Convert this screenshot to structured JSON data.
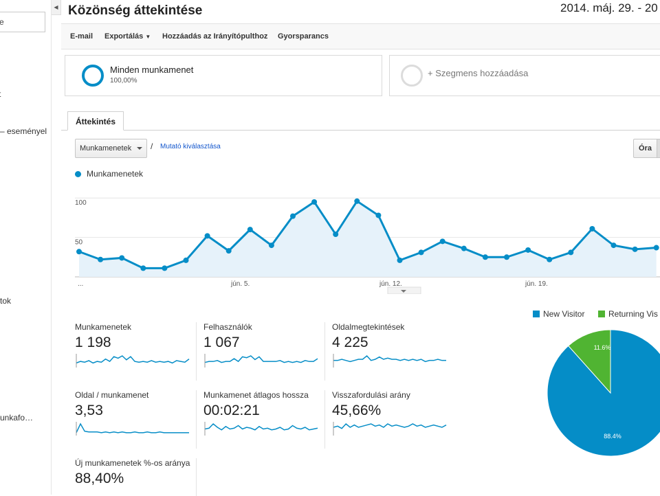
{
  "sidebar": {
    "search_value": "e",
    "items": [
      {
        "label": "t"
      },
      {
        "label": "– eseményel"
      },
      {
        "label": "tok"
      },
      {
        "label": "unkafo…"
      }
    ]
  },
  "header": {
    "title": "Közönség áttekintése",
    "date_range": "2014. máj. 29. - 20"
  },
  "toolbar": {
    "email": "E-mail",
    "export": "Exportálás",
    "add_dashboard": "Hozzáadás az Irányítópulthoz",
    "shortcut": "Gyorsparancs"
  },
  "segments": {
    "all_sessions_name": "Minden munkamenet",
    "all_sessions_pct": "100,00%",
    "add_segment": "+ Szegmens hozzáadása"
  },
  "tabs": {
    "overview": "Áttekintés"
  },
  "chart_controls": {
    "metric": "Munkamenetek",
    "slash": "/",
    "choose_metric": "Mutató kiválasztása",
    "hour": "Óra"
  },
  "colors": {
    "primary": "#058dc7",
    "secondary": "#50b432"
  },
  "chart_data": {
    "type": "line",
    "legend": "Munkamenetek",
    "y_ticks": [
      "100",
      "50"
    ],
    "x_ticks": [
      "...",
      "jún. 5.",
      "jún. 12.",
      "jún. 19."
    ],
    "ylim": [
      0,
      115
    ],
    "values": [
      32,
      22,
      24,
      11,
      11,
      21,
      52,
      33,
      60,
      40,
      77,
      95,
      54,
      96,
      78,
      21,
      31,
      45,
      36,
      25,
      25,
      34,
      22,
      31,
      61,
      40,
      35,
      37
    ]
  },
  "scorecards": [
    {
      "label": "Munkamenetek",
      "value": "1 198"
    },
    {
      "label": "Felhasználók",
      "value": "1 067"
    },
    {
      "label": "Oldalmegtekintések",
      "value": "4 225"
    },
    {
      "label": "Oldal / munkamenet",
      "value": "3,53"
    },
    {
      "label": "Munkamenet átlagos hossza",
      "value": "00:02:21"
    },
    {
      "label": "Visszafordulási arány",
      "value": "45,66%"
    },
    {
      "label": "Új munkamenetek %-os aránya",
      "value": "88,40%"
    }
  ],
  "pie": {
    "legend_new": "New Visitor",
    "legend_returning": "Returning Vis",
    "new_pct": 88.4,
    "returning_pct": 11.6,
    "new_label": "88.4%",
    "returning_label": "11.6%"
  }
}
